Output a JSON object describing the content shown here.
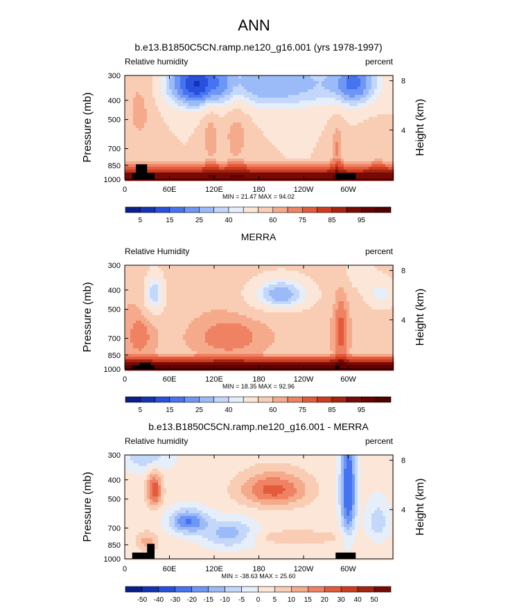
{
  "page_title": "ANN",
  "palette": {
    "full": [
      "#0a1e8c",
      "#1432b4",
      "#2850dc",
      "#4673f0",
      "#6e96f5",
      "#9bbaf8",
      "#c3d7fa",
      "#e6eefa",
      "#fbe6d8",
      "#f9cdb4",
      "#f5aa8c",
      "#f08264",
      "#e45a3c",
      "#cd3c1e",
      "#a5230f",
      "#780a05"
    ],
    "mask": "#000000"
  },
  "chart_data": [
    {
      "type": "heatmap",
      "title": "b.e13.B1850C5CN.ramp.ne120_g16.001 (yrs 1978-1997)",
      "left_label": "Relative humidity",
      "right_label": "percent",
      "ylabel": "Pressure (mb)",
      "y2label": "Height (km)",
      "x_ticks": [
        "0",
        "60E",
        "120E",
        "180",
        "120W",
        "60W"
      ],
      "x_tick_lons": [
        0,
        60,
        120,
        180,
        240,
        300
      ],
      "xlim": [
        0,
        360
      ],
      "y_ticks": [
        "300",
        "400",
        "500",
        "700",
        "850",
        "1000"
      ],
      "y_tick_p": [
        300,
        400,
        500,
        700,
        850,
        1000
      ],
      "ylim": [
        1000,
        300
      ],
      "y2_ticks": [
        "8",
        "4"
      ],
      "stats": "MIN = 21.47  MAX = 94.02",
      "min": 21.47,
      "max": 94.02,
      "colorbar_levels": [
        5,
        10,
        15,
        20,
        25,
        30,
        35,
        40,
        50,
        60,
        65,
        70,
        75,
        80,
        85,
        90,
        95
      ],
      "colorbar_labels": [
        "5",
        "15",
        "25",
        "40",
        "60",
        "75",
        "85",
        "95"
      ],
      "field": "model",
      "terrain": [
        [
          10,
          40,
          930
        ],
        [
          15,
          30,
          840
        ],
        [
          283,
          310,
          930
        ]
      ]
    },
    {
      "type": "heatmap",
      "title": "MERRA",
      "left_label": "Relative Humidity",
      "right_label": "percent",
      "ylabel": "Pressure (mb)",
      "y2label": "Height (km)",
      "x_ticks": [
        "0",
        "60E",
        "120E",
        "180",
        "120W",
        "60W"
      ],
      "x_tick_lons": [
        0,
        60,
        120,
        180,
        240,
        300
      ],
      "xlim": [
        0,
        360
      ],
      "y_ticks": [
        "300",
        "400",
        "500",
        "700",
        "850",
        "1000"
      ],
      "y_tick_p": [
        300,
        400,
        500,
        700,
        850,
        1000
      ],
      "ylim": [
        1000,
        300
      ],
      "y2_ticks": [
        "8",
        "4"
      ],
      "stats": "MIN = 18.35  MAX = 92.96",
      "min": 18.35,
      "max": 92.96,
      "colorbar_levels": [
        5,
        10,
        15,
        20,
        25,
        30,
        35,
        40,
        50,
        60,
        65,
        70,
        75,
        80,
        85,
        90,
        95
      ],
      "colorbar_labels": [
        "5",
        "15",
        "25",
        "40",
        "60",
        "75",
        "85",
        "95"
      ],
      "field": "merra",
      "terrain": [
        [
          10,
          40,
          960
        ],
        [
          20,
          35,
          930
        ],
        [
          282,
          288,
          960
        ]
      ]
    },
    {
      "type": "heatmap",
      "title": "b.e13.B1850C5CN.ramp.ne120_g16.001 - MERRA",
      "left_label": "Relative humidity",
      "right_label": "percent",
      "ylabel": "Pressure (mb)",
      "y2label": "Height (km)",
      "x_ticks": [
        "0",
        "60E",
        "120E",
        "180",
        "120W",
        "60W"
      ],
      "x_tick_lons": [
        0,
        60,
        120,
        180,
        240,
        300
      ],
      "xlim": [
        0,
        360
      ],
      "y_ticks": [
        "300",
        "400",
        "500",
        "700",
        "850",
        "1000"
      ],
      "y_tick_p": [
        300,
        400,
        500,
        700,
        850,
        1000
      ],
      "ylim": [
        1000,
        300
      ],
      "y2_ticks": [
        "8",
        "4"
      ],
      "stats": "MIN = -38.63  MAX = 25.60",
      "min": -38.63,
      "max": 25.6,
      "colorbar_levels": [
        -50,
        -40,
        -30,
        -20,
        -15,
        -10,
        -5,
        0,
        5,
        10,
        15,
        20,
        30,
        40,
        50
      ],
      "colorbar_labels": [
        "-50",
        "-40",
        "-30",
        "-20",
        "-15",
        "-10",
        "-5",
        "0",
        "5",
        "10",
        "15",
        "20",
        "30",
        "40",
        "50"
      ],
      "field": "diff",
      "terrain": [
        [
          10,
          40,
          930
        ],
        [
          30,
          40,
          840
        ],
        [
          283,
          310,
          930
        ]
      ]
    }
  ]
}
